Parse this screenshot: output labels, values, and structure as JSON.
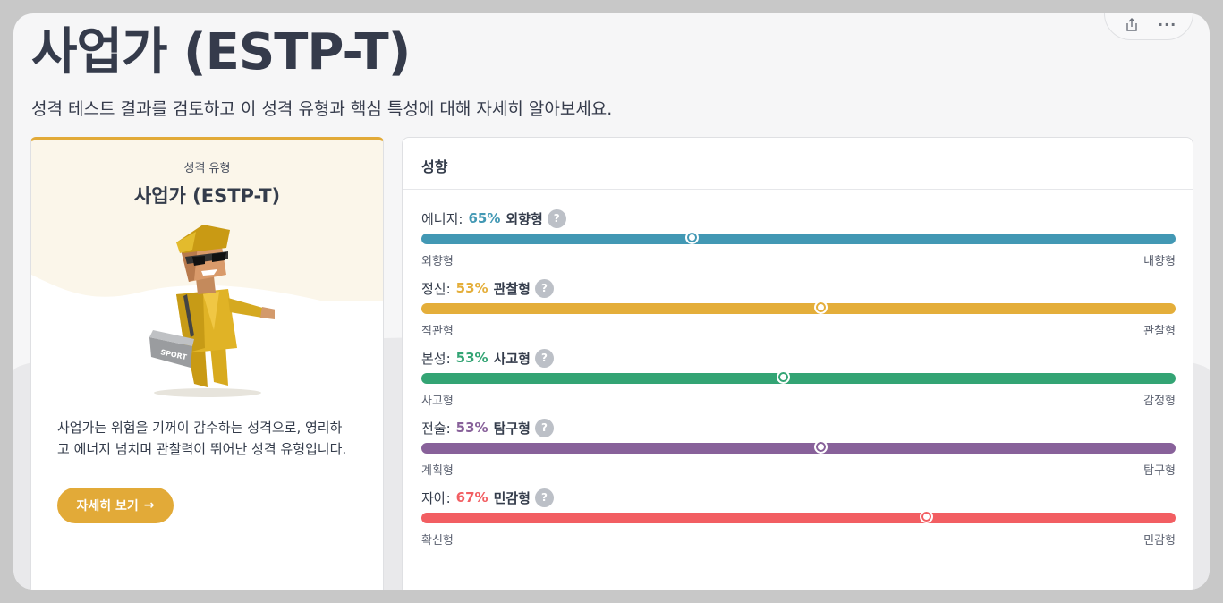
{
  "header": {
    "title": "사업가 (ESTP-T)",
    "subtitle": "성격 테스트 결과를 검토하고 이 성격 유형과 핵심 특성에 대해 자세히 알아보세요."
  },
  "toolbar": {
    "share_icon": "share-icon",
    "more_icon": "more-icon",
    "more_glyph": "···"
  },
  "type_card": {
    "label": "성격 유형",
    "name": "사업가 (ESTP-T)",
    "description": "사업가는 위험을 기꺼이 감수하는 성격으로, 영리하고 에너지 넘치며 관찰력이 뛰어난 성격 유형입니다.",
    "button_label": "자세히 보기",
    "button_arrow": "→",
    "avatar_bag_text": "SPORT",
    "accent_color": "#e2aa38"
  },
  "traits_card": {
    "title": "성향",
    "help_glyph": "?",
    "traits": [
      {
        "category": "에너지:",
        "percent_text": "65%",
        "type": "외향형",
        "left": "외향형",
        "right": "내향형",
        "color": "#4298b4",
        "knob": 0.36
      },
      {
        "category": "정신:",
        "percent_text": "53%",
        "type": "관찰형",
        "left": "직관형",
        "right": "관찰형",
        "color": "#e4ae3a",
        "knob": 0.53
      },
      {
        "category": "본성:",
        "percent_text": "53%",
        "type": "사고형",
        "left": "사고형",
        "right": "감정형",
        "color": "#33a474",
        "knob": 0.48
      },
      {
        "category": "전술:",
        "percent_text": "53%",
        "type": "탐구형",
        "left": "계획형",
        "right": "탐구형",
        "color": "#88619a",
        "knob": 0.53
      },
      {
        "category": "자아:",
        "percent_text": "67%",
        "type": "민감형",
        "left": "확신형",
        "right": "민감형",
        "color": "#f25e62",
        "knob": 0.67
      }
    ]
  }
}
